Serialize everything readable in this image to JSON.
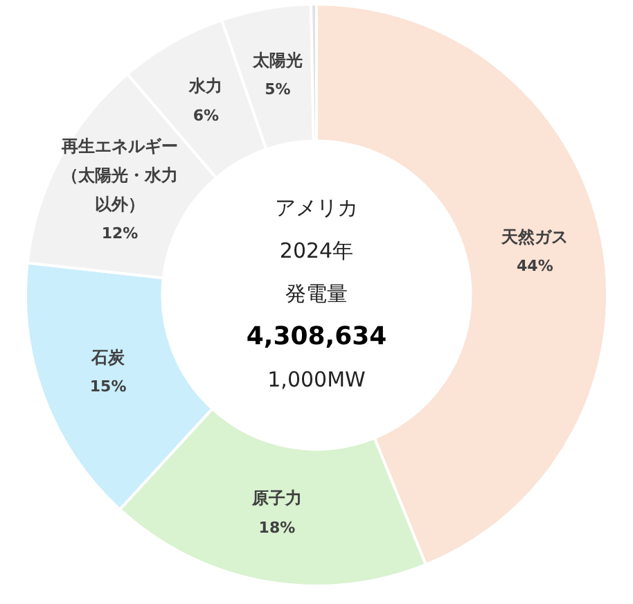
{
  "chart_data": {
    "type": "donut",
    "categories": [
      "天然ガス",
      "原子力",
      "石炭",
      "再生エネルギー（太陽光・水力以外）",
      "水力",
      "太陽光",
      null
    ],
    "values": [
      44,
      18,
      15,
      12,
      6,
      5,
      0.3
    ],
    "value_labels": [
      "44%",
      "18%",
      "15%",
      "12%",
      "6%",
      "5%",
      null
    ],
    "colors": [
      "#fbe3d6",
      "#d9f2d0",
      "#caeefb",
      "#f2f2f2",
      "#f2f2f2",
      "#f2f2f2",
      "#e0e0e0"
    ],
    "annotations": [
      "アメリカ",
      "2024年",
      "発電量",
      "4,308,634",
      "1,000MW"
    ],
    "legend": false
  }
}
